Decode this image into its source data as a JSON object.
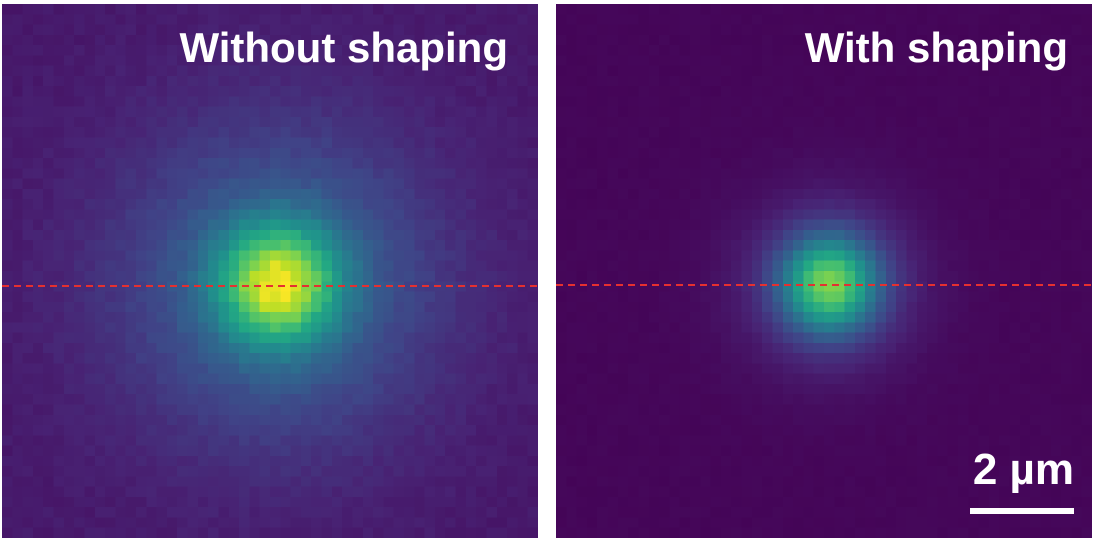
{
  "panels": [
    {
      "label": "Without shaping",
      "spot": {
        "peak": 1.0,
        "sigma_um": 0.78,
        "tail_sigma_um": 2.1,
        "tail_weight": 0.3,
        "background": 0.07,
        "noise": 0.06
      }
    },
    {
      "label": "With shaping",
      "spot": {
        "peak": 0.82,
        "sigma_um": 0.62,
        "tail_sigma_um": 1.15,
        "tail_weight": 0.22,
        "background": 0.015,
        "noise": 0.025
      }
    }
  ],
  "scale_bar": {
    "label": "2 µm",
    "length_um": 2
  },
  "profile_line": {
    "color": "#e53030",
    "style": "dashed"
  },
  "colormap": "viridis"
}
